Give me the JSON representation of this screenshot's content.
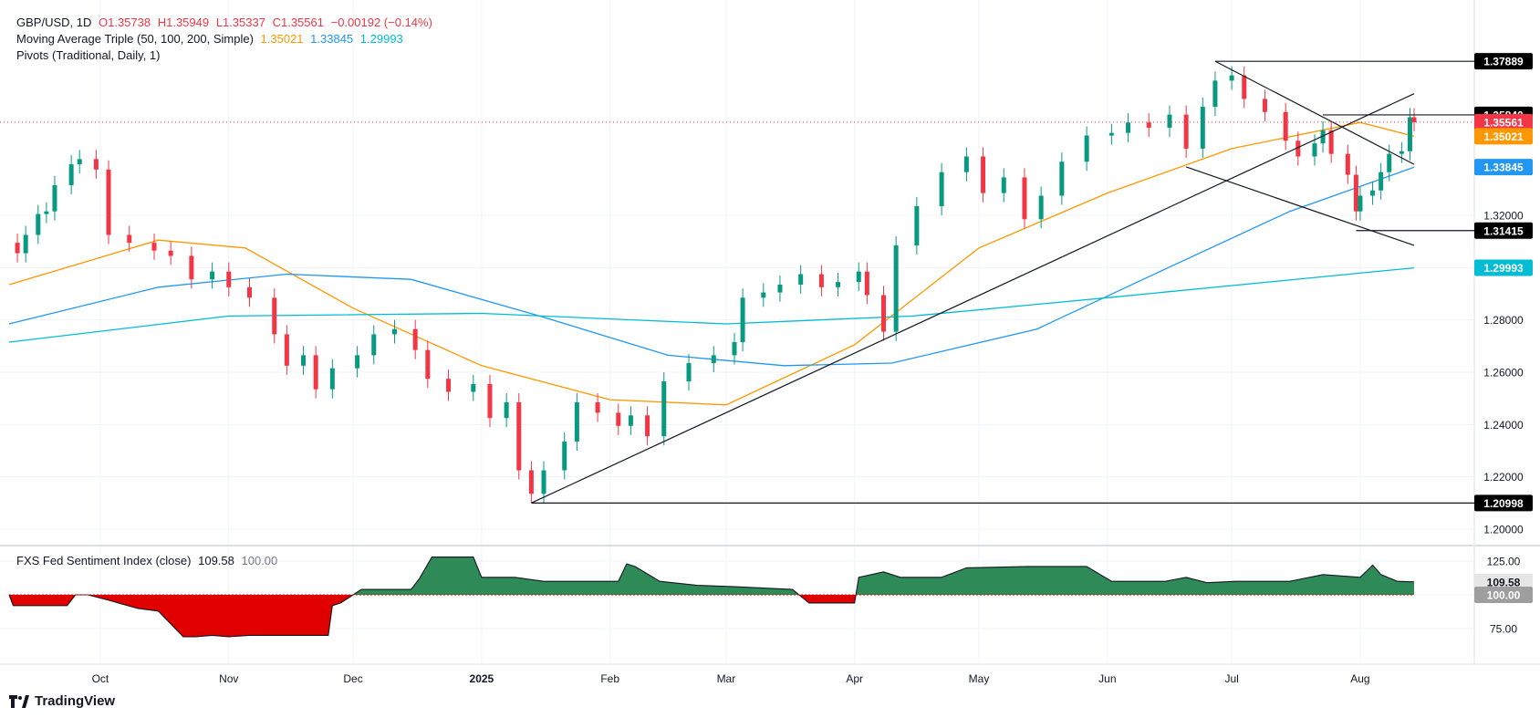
{
  "header": {
    "symbol": "GBP/USD, 1D",
    "open": "O1.35738",
    "high": "H1.35949",
    "low": "L1.35337",
    "close": "C1.35561",
    "change": "−0.00192 (−0.14%)",
    "ma_title": "Moving Average Triple (50, 100, 200, Simple)",
    "ma50_value": "1.35021",
    "ma100_value": "1.33845",
    "ma200_value": "1.29993",
    "pivots_title": "Pivots (Traditional, Daily, 1)"
  },
  "indicator": {
    "title": "FXS Fed Sentiment Index (close)",
    "value": "109.58",
    "baseline": "100.00"
  },
  "brand": "TradingView",
  "colors": {
    "up": "#089981",
    "down": "#f23645",
    "ma50": "#ff9800",
    "ma100": "#2196f3",
    "ma200": "#00bcd4",
    "sentiment_up": "#2e8b57",
    "sentiment_down": "#e00000"
  },
  "chart_data": [
    {
      "type": "candlestick",
      "title": "GBP/USD, 1D",
      "price_ticks": [
        1.2,
        1.22,
        1.24,
        1.26,
        1.28,
        1.3,
        1.32
      ],
      "time_labels": [
        {
          "label": "Oct",
          "date": "2024-10-01"
        },
        {
          "label": "Nov",
          "date": "2024-11-01"
        },
        {
          "label": "Dec",
          "date": "2024-12-01"
        },
        {
          "label": "2025",
          "date": "2025-01-01",
          "bold": true
        },
        {
          "label": "Feb",
          "date": "2025-02-01"
        },
        {
          "label": "Mar",
          "date": "2025-03-01"
        },
        {
          "label": "Apr",
          "date": "2025-04-01"
        },
        {
          "label": "May",
          "date": "2025-05-01"
        },
        {
          "label": "Jun",
          "date": "2025-06-01"
        },
        {
          "label": "Jul",
          "date": "2025-07-01"
        },
        {
          "label": "Aug",
          "date": "2025-08-01"
        }
      ],
      "closes": [
        {
          "date": "2024-09-09",
          "close": 1.3095
        },
        {
          "date": "2024-09-11",
          "close": 1.3055
        },
        {
          "date": "2024-09-13",
          "close": 1.3125
        },
        {
          "date": "2024-09-16",
          "close": 1.3205
        },
        {
          "date": "2024-09-18",
          "close": 1.3215
        },
        {
          "date": "2024-09-20",
          "close": 1.3315
        },
        {
          "date": "2024-09-24",
          "close": 1.3395
        },
        {
          "date": "2024-09-26",
          "close": 1.3415
        },
        {
          "date": "2024-09-30",
          "close": 1.3375
        },
        {
          "date": "2024-10-03",
          "close": 1.3125
        },
        {
          "date": "2024-10-08",
          "close": 1.3095
        },
        {
          "date": "2024-10-14",
          "close": 1.3065
        },
        {
          "date": "2024-10-18",
          "close": 1.3045
        },
        {
          "date": "2024-10-23",
          "close": 1.2955
        },
        {
          "date": "2024-10-28",
          "close": 1.2985
        },
        {
          "date": "2024-11-01",
          "close": 1.2925
        },
        {
          "date": "2024-11-06",
          "close": 1.2885
        },
        {
          "date": "2024-11-12",
          "close": 1.2745
        },
        {
          "date": "2024-11-15",
          "close": 1.2625
        },
        {
          "date": "2024-11-19",
          "close": 1.2665
        },
        {
          "date": "2024-11-22",
          "close": 1.2535
        },
        {
          "date": "2024-11-26",
          "close": 1.2615
        },
        {
          "date": "2024-12-02",
          "close": 1.2665
        },
        {
          "date": "2024-12-06",
          "close": 1.2745
        },
        {
          "date": "2024-12-11",
          "close": 1.2765
        },
        {
          "date": "2024-12-16",
          "close": 1.2685
        },
        {
          "date": "2024-12-19",
          "close": 1.2575
        },
        {
          "date": "2024-12-24",
          "close": 1.2525
        },
        {
          "date": "2024-12-30",
          "close": 1.2555
        },
        {
          "date": "2025-01-03",
          "close": 1.2425
        },
        {
          "date": "2025-01-07",
          "close": 1.2485
        },
        {
          "date": "2025-01-10",
          "close": 1.2225
        },
        {
          "date": "2025-01-13",
          "close": 1.2135
        },
        {
          "date": "2025-01-16",
          "close": 1.2225
        },
        {
          "date": "2025-01-21",
          "close": 1.2335
        },
        {
          "date": "2025-01-24",
          "close": 1.2485
        },
        {
          "date": "2025-01-29",
          "close": 1.2445
        },
        {
          "date": "2025-02-03",
          "close": 1.2395
        },
        {
          "date": "2025-02-06",
          "close": 1.2435
        },
        {
          "date": "2025-02-10",
          "close": 1.2355
        },
        {
          "date": "2025-02-14",
          "close": 1.2565
        },
        {
          "date": "2025-02-20",
          "close": 1.2635
        },
        {
          "date": "2025-02-26",
          "close": 1.2665
        },
        {
          "date": "2025-03-03",
          "close": 1.2715
        },
        {
          "date": "2025-03-05",
          "close": 1.2885
        },
        {
          "date": "2025-03-10",
          "close": 1.2905
        },
        {
          "date": "2025-03-14",
          "close": 1.2935
        },
        {
          "date": "2025-03-19",
          "close": 1.2975
        },
        {
          "date": "2025-03-24",
          "close": 1.2925
        },
        {
          "date": "2025-03-28",
          "close": 1.2945
        },
        {
          "date": "2025-04-02",
          "close": 1.2985
        },
        {
          "date": "2025-04-04",
          "close": 1.2895
        },
        {
          "date": "2025-04-08",
          "close": 1.2755
        },
        {
          "date": "2025-04-11",
          "close": 1.3085
        },
        {
          "date": "2025-04-16",
          "close": 1.3235
        },
        {
          "date": "2025-04-22",
          "close": 1.3365
        },
        {
          "date": "2025-04-28",
          "close": 1.3425
        },
        {
          "date": "2025-05-02",
          "close": 1.3285
        },
        {
          "date": "2025-05-07",
          "close": 1.3345
        },
        {
          "date": "2025-05-12",
          "close": 1.3185
        },
        {
          "date": "2025-05-16",
          "close": 1.3275
        },
        {
          "date": "2025-05-21",
          "close": 1.3405
        },
        {
          "date": "2025-05-27",
          "close": 1.3505
        },
        {
          "date": "2025-06-02",
          "close": 1.3515
        },
        {
          "date": "2025-06-06",
          "close": 1.3555
        },
        {
          "date": "2025-06-11",
          "close": 1.3535
        },
        {
          "date": "2025-06-16",
          "close": 1.3585
        },
        {
          "date": "2025-06-20",
          "close": 1.3455
        },
        {
          "date": "2025-06-24",
          "close": 1.3615
        },
        {
          "date": "2025-06-27",
          "close": 1.3715
        },
        {
          "date": "2025-07-01",
          "close": 1.3735
        },
        {
          "date": "2025-07-04",
          "close": 1.3645
        },
        {
          "date": "2025-07-09",
          "close": 1.3595
        },
        {
          "date": "2025-07-14",
          "close": 1.3485
        },
        {
          "date": "2025-07-17",
          "close": 1.3425
        },
        {
          "date": "2025-07-21",
          "close": 1.3475
        },
        {
          "date": "2025-07-23",
          "close": 1.3525
        },
        {
          "date": "2025-07-25",
          "close": 1.3435
        },
        {
          "date": "2025-07-29",
          "close": 1.3355
        },
        {
          "date": "2025-07-31",
          "close": 1.3215
        },
        {
          "date": "2025-08-01",
          "close": 1.3275
        },
        {
          "date": "2025-08-04",
          "close": 1.3295
        },
        {
          "date": "2025-08-06",
          "close": 1.3365
        },
        {
          "date": "2025-08-08",
          "close": 1.3435
        },
        {
          "date": "2025-08-11",
          "close": 1.3445
        },
        {
          "date": "2025-08-13",
          "close": 1.3575
        },
        {
          "date": "2025-08-14",
          "close": 1.3556
        }
      ],
      "last_candle": {
        "date": "2025-08-14",
        "open": 1.35738,
        "high": 1.35949,
        "low": 1.35337,
        "close": 1.35561
      },
      "moving_averages": [
        {
          "name": "50",
          "color": "#ff9800",
          "points": [
            {
              "date": "2024-09-09",
              "value": 1.2935
            },
            {
              "date": "2024-10-15",
              "value": 1.3105
            },
            {
              "date": "2024-11-05",
              "value": 1.3075
            },
            {
              "date": "2024-12-01",
              "value": 1.2845
            },
            {
              "date": "2025-01-01",
              "value": 1.2625
            },
            {
              "date": "2025-02-01",
              "value": 1.2495
            },
            {
              "date": "2025-03-01",
              "value": 1.2475
            },
            {
              "date": "2025-04-01",
              "value": 1.2705
            },
            {
              "date": "2025-05-01",
              "value": 1.3075
            },
            {
              "date": "2025-06-01",
              "value": 1.3285
            },
            {
              "date": "2025-07-01",
              "value": 1.3455
            },
            {
              "date": "2025-08-01",
              "value": 1.3555
            },
            {
              "date": "2025-08-14",
              "value": 1.3502
            }
          ]
        },
        {
          "name": "100",
          "color": "#2196f3",
          "points": [
            {
              "date": "2024-09-09",
              "value": 1.2785
            },
            {
              "date": "2024-10-15",
              "value": 1.2925
            },
            {
              "date": "2024-11-15",
              "value": 1.2975
            },
            {
              "date": "2024-12-15",
              "value": 1.2955
            },
            {
              "date": "2025-01-15",
              "value": 1.2815
            },
            {
              "date": "2025-02-15",
              "value": 1.2665
            },
            {
              "date": "2025-03-15",
              "value": 1.2625
            },
            {
              "date": "2025-04-10",
              "value": 1.2635
            },
            {
              "date": "2025-05-15",
              "value": 1.2765
            },
            {
              "date": "2025-06-15",
              "value": 1.2995
            },
            {
              "date": "2025-07-15",
              "value": 1.3215
            },
            {
              "date": "2025-08-14",
              "value": 1.3384
            }
          ]
        },
        {
          "name": "200",
          "color": "#00bcd4",
          "points": [
            {
              "date": "2024-09-09",
              "value": 1.2715
            },
            {
              "date": "2024-11-01",
              "value": 1.2815
            },
            {
              "date": "2025-01-01",
              "value": 1.2825
            },
            {
              "date": "2025-03-01",
              "value": 1.2785
            },
            {
              "date": "2025-04-15",
              "value": 1.2815
            },
            {
              "date": "2025-06-01",
              "value": 1.2885
            },
            {
              "date": "2025-08-14",
              "value": 1.2999
            }
          ]
        }
      ],
      "trend_lines": [
        {
          "from": {
            "date": "2025-01-13",
            "value": 1.21
          },
          "to": {
            "date": "2025-08-14",
            "value": 1.3665
          }
        },
        {
          "from": {
            "date": "2025-06-27",
            "value": 1.3789
          },
          "to": {
            "date": "2025-08-14",
            "value": 1.3395
          }
        },
        {
          "from": {
            "date": "2025-06-20",
            "value": 1.3385
          },
          "to": {
            "date": "2025-08-14",
            "value": 1.3085
          }
        }
      ],
      "horizontal_levels": [
        {
          "label": "1.37889",
          "value": 1.37889,
          "from": "2025-06-27"
        },
        {
          "label": "1.35840",
          "value": 1.3584,
          "from": "2025-07-23"
        },
        {
          "label": "1.31415",
          "value": 1.31415,
          "from": "2025-07-31"
        },
        {
          "label": "1.20998",
          "value": 1.20998,
          "from": "2025-01-13"
        }
      ],
      "price_labels": [
        {
          "label": "1.35561",
          "value": 1.35561,
          "color": "#f23645"
        },
        {
          "label": "1.35021",
          "value": 1.35021,
          "color": "#ff9800"
        },
        {
          "label": "1.33845",
          "value": 1.33845,
          "color": "#2196f3"
        },
        {
          "label": "1.29993",
          "value": 1.29993,
          "color": "#00bcd4"
        }
      ]
    },
    {
      "type": "area",
      "title": "FXS Fed Sentiment Index (close)",
      "baseline": 100,
      "y_ticks": [
        75,
        100,
        125
      ],
      "points": [
        {
          "date": "2024-09-09",
          "value": 100
        },
        {
          "date": "2024-09-10",
          "value": 92
        },
        {
          "date": "2024-09-23",
          "value": 92
        },
        {
          "date": "2024-09-25",
          "value": 100
        },
        {
          "date": "2024-09-28",
          "value": 100
        },
        {
          "date": "2024-10-03",
          "value": 96
        },
        {
          "date": "2024-10-10",
          "value": 90
        },
        {
          "date": "2024-10-15",
          "value": 88
        },
        {
          "date": "2024-10-21",
          "value": 69
        },
        {
          "date": "2024-10-24",
          "value": 69
        },
        {
          "date": "2024-10-28",
          "value": 70
        },
        {
          "date": "2024-11-01",
          "value": 69
        },
        {
          "date": "2024-11-06",
          "value": 70
        },
        {
          "date": "2024-11-12",
          "value": 70
        },
        {
          "date": "2024-11-25",
          "value": 70
        },
        {
          "date": "2024-11-26",
          "value": 92
        },
        {
          "date": "2024-11-28",
          "value": 94
        },
        {
          "date": "2024-12-03",
          "value": 104
        },
        {
          "date": "2024-12-06",
          "value": 104
        },
        {
          "date": "2024-12-15",
          "value": 104
        },
        {
          "date": "2024-12-17",
          "value": 112
        },
        {
          "date": "2024-12-20",
          "value": 128
        },
        {
          "date": "2024-12-30",
          "value": 128
        },
        {
          "date": "2025-01-01",
          "value": 113
        },
        {
          "date": "2025-01-09",
          "value": 113
        },
        {
          "date": "2025-01-16",
          "value": 110
        },
        {
          "date": "2025-01-28",
          "value": 110
        },
        {
          "date": "2025-02-03",
          "value": 110
        },
        {
          "date": "2025-02-05",
          "value": 123
        },
        {
          "date": "2025-02-07",
          "value": 121
        },
        {
          "date": "2025-02-13",
          "value": 110
        },
        {
          "date": "2025-02-22",
          "value": 107
        },
        {
          "date": "2025-03-03",
          "value": 106
        },
        {
          "date": "2025-03-17",
          "value": 104
        },
        {
          "date": "2025-03-21",
          "value": 94
        },
        {
          "date": "2025-04-01",
          "value": 94
        },
        {
          "date": "2025-04-02",
          "value": 113
        },
        {
          "date": "2025-04-08",
          "value": 117
        },
        {
          "date": "2025-04-12",
          "value": 113
        },
        {
          "date": "2025-04-22",
          "value": 113
        },
        {
          "date": "2025-04-28",
          "value": 120
        },
        {
          "date": "2025-05-13",
          "value": 121
        },
        {
          "date": "2025-05-27",
          "value": 121
        },
        {
          "date": "2025-06-02",
          "value": 110
        },
        {
          "date": "2025-06-15",
          "value": 110
        },
        {
          "date": "2025-06-20",
          "value": 113
        },
        {
          "date": "2025-06-25",
          "value": 109
        },
        {
          "date": "2025-07-02",
          "value": 110
        },
        {
          "date": "2025-07-15",
          "value": 110
        },
        {
          "date": "2025-07-23",
          "value": 115
        },
        {
          "date": "2025-08-01",
          "value": 113
        },
        {
          "date": "2025-08-04",
          "value": 122
        },
        {
          "date": "2025-08-06",
          "value": 115
        },
        {
          "date": "2025-08-10",
          "value": 110
        },
        {
          "date": "2025-08-14",
          "value": 109.58
        }
      ]
    }
  ]
}
